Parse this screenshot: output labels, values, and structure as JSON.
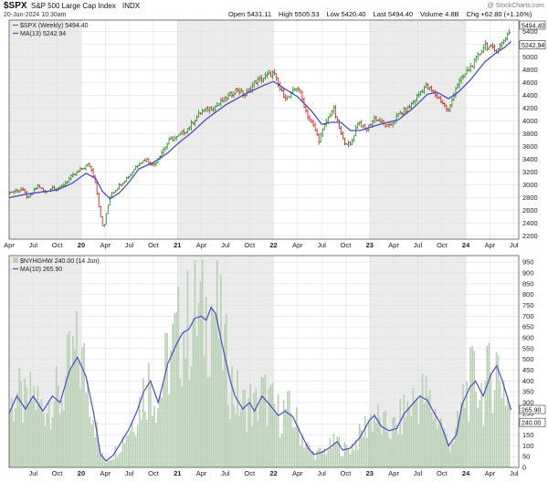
{
  "header": {
    "symbol": "$SPX",
    "name": "S&P 500 Large Cap Index",
    "exchange": "INDX",
    "date": "20-Jun-2024 10:30am",
    "watermark": "@ StockCharts.com",
    "quote": [
      {
        "label": "Open",
        "value": "5431.11"
      },
      {
        "label": "High",
        "value": "5505.53"
      },
      {
        "label": "Low",
        "value": "5420.40"
      },
      {
        "label": "Last",
        "value": "5494.40"
      },
      {
        "label": "Volume",
        "value": "4.8B"
      },
      {
        "label": "Chg",
        "value": "+62.80 (+1.16%)"
      }
    ]
  },
  "colors": {
    "up": "#2f8f2f",
    "down": "#cc2b2b",
    "ma": "#4c4cc0",
    "bars": "#b8d1b4",
    "shade": "#ebebeb",
    "grid": "#e0e0e0"
  },
  "chart_data": [
    {
      "type": "bar",
      "style": "ohlc",
      "legend": [
        "$SPX (Weekly) 5494.40",
        "MA(13) 5242.94"
      ],
      "price_tags": [
        "5494.40",
        "5242.94"
      ],
      "yticks": [
        "2200",
        "2400",
        "2600",
        "2800",
        "3000",
        "3200",
        "3400",
        "3600",
        "3800",
        "4000",
        "4200",
        "4400",
        "4600",
        "4800",
        "5000",
        "5200",
        "5400"
      ],
      "ylim": [
        2150,
        5580
      ],
      "xlim": [
        2019.25,
        2024.55
      ],
      "x_tick_labels": [
        {
          "t": 2019.25,
          "label": "Apr"
        },
        {
          "t": 2019.5,
          "label": "Jul"
        },
        {
          "t": 2019.75,
          "label": "Oct"
        },
        {
          "t": 2020.0,
          "label": "20"
        },
        {
          "t": 2020.25,
          "label": "Apr"
        },
        {
          "t": 2020.5,
          "label": "Jul"
        },
        {
          "t": 2020.75,
          "label": "Oct"
        },
        {
          "t": 2021.0,
          "label": "21"
        },
        {
          "t": 2021.25,
          "label": "Apr"
        },
        {
          "t": 2021.5,
          "label": "Jul"
        },
        {
          "t": 2021.75,
          "label": "Oct"
        },
        {
          "t": 2022.0,
          "label": "22"
        },
        {
          "t": 2022.25,
          "label": "Apr"
        },
        {
          "t": 2022.5,
          "label": "Jul"
        },
        {
          "t": 2022.75,
          "label": "Oct"
        },
        {
          "t": 2023.0,
          "label": "23"
        },
        {
          "t": 2023.25,
          "label": "Apr"
        },
        {
          "t": 2023.5,
          "label": "Jul"
        },
        {
          "t": 2023.75,
          "label": "Oct"
        },
        {
          "t": 2024.0,
          "label": "24"
        },
        {
          "t": 2024.25,
          "label": "Apr"
        },
        {
          "t": 2024.5,
          "label": "Jul"
        }
      ],
      "price_path": [
        [
          2019.25,
          2880
        ],
        [
          2019.38,
          2930
        ],
        [
          2019.45,
          2790
        ],
        [
          2019.55,
          2990
        ],
        [
          2019.62,
          2880
        ],
        [
          2019.7,
          2960
        ],
        [
          2019.78,
          2950
        ],
        [
          2019.88,
          3100
        ],
        [
          2020.0,
          3240
        ],
        [
          2020.08,
          3330
        ],
        [
          2020.14,
          3100
        ],
        [
          2020.2,
          2500
        ],
        [
          2020.23,
          2300
        ],
        [
          2020.3,
          2850
        ],
        [
          2020.4,
          3000
        ],
        [
          2020.5,
          3150
        ],
        [
          2020.6,
          3350
        ],
        [
          2020.68,
          3400
        ],
        [
          2020.75,
          3300
        ],
        [
          2020.83,
          3500
        ],
        [
          2020.92,
          3700
        ],
        [
          2021.0,
          3750
        ],
        [
          2021.12,
          3900
        ],
        [
          2021.25,
          4150
        ],
        [
          2021.4,
          4230
        ],
        [
          2021.5,
          4350
        ],
        [
          2021.62,
          4500
        ],
        [
          2021.7,
          4400
        ],
        [
          2021.8,
          4600
        ],
        [
          2021.92,
          4700
        ],
        [
          2022.0,
          4750
        ],
        [
          2022.08,
          4450
        ],
        [
          2022.15,
          4350
        ],
        [
          2022.25,
          4550
        ],
        [
          2022.35,
          4100
        ],
        [
          2022.42,
          3900
        ],
        [
          2022.47,
          3700
        ],
        [
          2022.55,
          4000
        ],
        [
          2022.62,
          4200
        ],
        [
          2022.72,
          3700
        ],
        [
          2022.8,
          3620
        ],
        [
          2022.88,
          4000
        ],
        [
          2022.96,
          3850
        ],
        [
          2023.05,
          4050
        ],
        [
          2023.15,
          3950
        ],
        [
          2023.2,
          3900
        ],
        [
          2023.3,
          4100
        ],
        [
          2023.4,
          4200
        ],
        [
          2023.5,
          4400
        ],
        [
          2023.58,
          4550
        ],
        [
          2023.66,
          4450
        ],
        [
          2023.75,
          4300
        ],
        [
          2023.82,
          4150
        ],
        [
          2023.9,
          4550
        ],
        [
          2024.0,
          4750
        ],
        [
          2024.1,
          4950
        ],
        [
          2024.2,
          5200
        ],
        [
          2024.3,
          5100
        ],
        [
          2024.37,
          5200
        ],
        [
          2024.45,
          5400
        ],
        [
          2024.47,
          5494
        ]
      ],
      "ma_path": [
        [
          2019.25,
          2800
        ],
        [
          2019.45,
          2860
        ],
        [
          2019.6,
          2890
        ],
        [
          2019.75,
          2920
        ],
        [
          2019.9,
          3020
        ],
        [
          2020.05,
          3180
        ],
        [
          2020.15,
          3100
        ],
        [
          2020.22,
          2900
        ],
        [
          2020.3,
          2780
        ],
        [
          2020.4,
          2880
        ],
        [
          2020.5,
          3050
        ],
        [
          2020.6,
          3250
        ],
        [
          2020.75,
          3350
        ],
        [
          2020.9,
          3500
        ],
        [
          2021.0,
          3640
        ],
        [
          2021.15,
          3820
        ],
        [
          2021.3,
          4030
        ],
        [
          2021.5,
          4250
        ],
        [
          2021.7,
          4420
        ],
        [
          2021.9,
          4560
        ],
        [
          2022.0,
          4620
        ],
        [
          2022.12,
          4500
        ],
        [
          2022.25,
          4380
        ],
        [
          2022.4,
          4150
        ],
        [
          2022.5,
          3950
        ],
        [
          2022.6,
          3980
        ],
        [
          2022.7,
          3980
        ],
        [
          2022.8,
          3850
        ],
        [
          2022.9,
          3850
        ],
        [
          2023.0,
          3900
        ],
        [
          2023.15,
          3970
        ],
        [
          2023.3,
          4020
        ],
        [
          2023.45,
          4200
        ],
        [
          2023.6,
          4420
        ],
        [
          2023.7,
          4450
        ],
        [
          2023.82,
          4350
        ],
        [
          2023.92,
          4450
        ],
        [
          2024.05,
          4650
        ],
        [
          2024.2,
          4930
        ],
        [
          2024.3,
          5050
        ],
        [
          2024.4,
          5150
        ],
        [
          2024.47,
          5243
        ]
      ]
    },
    {
      "type": "bar",
      "legend": [
        "$NYHGHW 240.00 (14 Jun)",
        "MA(10) 265.90"
      ],
      "price_tags": [
        "265.90",
        "240.00"
      ],
      "yticks": [
        "0",
        "50",
        "100",
        "150",
        "200",
        "250",
        "300",
        "350",
        "400",
        "450",
        "500",
        "550",
        "600",
        "650",
        "700",
        "750",
        "800",
        "850",
        "900",
        "950"
      ],
      "ylim": [
        0,
        980
      ],
      "xlim": [
        2019.25,
        2024.55
      ],
      "x_tick_labels": [
        {
          "t": 2019.5,
          "label": "Jul"
        },
        {
          "t": 2019.75,
          "label": "Oct"
        },
        {
          "t": 2020.0,
          "label": "20"
        },
        {
          "t": 2020.25,
          "label": "Apr"
        },
        {
          "t": 2020.5,
          "label": "Jul"
        },
        {
          "t": 2020.75,
          "label": "Oct"
        },
        {
          "t": 2021.0,
          "label": "21"
        },
        {
          "t": 2021.25,
          "label": "Apr"
        },
        {
          "t": 2021.5,
          "label": "Jul"
        },
        {
          "t": 2021.75,
          "label": "Oct"
        },
        {
          "t": 2022.0,
          "label": "22"
        },
        {
          "t": 2022.25,
          "label": "Apr"
        },
        {
          "t": 2022.5,
          "label": "Jul"
        },
        {
          "t": 2022.75,
          "label": "Oct"
        },
        {
          "t": 2023.0,
          "label": "23"
        },
        {
          "t": 2023.25,
          "label": "Apr"
        },
        {
          "t": 2023.5,
          "label": "Jul"
        },
        {
          "t": 2023.75,
          "label": "Oct"
        },
        {
          "t": 2024.0,
          "label": "24"
        },
        {
          "t": 2024.25,
          "label": "Apr"
        },
        {
          "t": 2024.5,
          "label": "Jul"
        }
      ],
      "ma_path": [
        [
          2019.25,
          250
        ],
        [
          2019.33,
          330
        ],
        [
          2019.42,
          270
        ],
        [
          2019.5,
          330
        ],
        [
          2019.6,
          260
        ],
        [
          2019.7,
          330
        ],
        [
          2019.78,
          300
        ],
        [
          2019.88,
          450
        ],
        [
          2019.96,
          510
        ],
        [
          2020.05,
          420
        ],
        [
          2020.13,
          250
        ],
        [
          2020.2,
          60
        ],
        [
          2020.26,
          30
        ],
        [
          2020.33,
          55
        ],
        [
          2020.42,
          120
        ],
        [
          2020.5,
          180
        ],
        [
          2020.58,
          260
        ],
        [
          2020.65,
          350
        ],
        [
          2020.72,
          400
        ],
        [
          2020.8,
          300
        ],
        [
          2020.9,
          480
        ],
        [
          2020.98,
          560
        ],
        [
          2021.05,
          620
        ],
        [
          2021.12,
          640
        ],
        [
          2021.18,
          690
        ],
        [
          2021.25,
          700
        ],
        [
          2021.3,
          680
        ],
        [
          2021.35,
          740
        ],
        [
          2021.4,
          710
        ],
        [
          2021.45,
          600
        ],
        [
          2021.5,
          500
        ],
        [
          2021.55,
          400
        ],
        [
          2021.6,
          330
        ],
        [
          2021.68,
          270
        ],
        [
          2021.75,
          300
        ],
        [
          2021.8,
          260
        ],
        [
          2021.88,
          330
        ],
        [
          2021.96,
          290
        ],
        [
          2022.05,
          240
        ],
        [
          2022.12,
          260
        ],
        [
          2022.2,
          235
        ],
        [
          2022.28,
          160
        ],
        [
          2022.36,
          90
        ],
        [
          2022.42,
          60
        ],
        [
          2022.5,
          70
        ],
        [
          2022.58,
          90
        ],
        [
          2022.66,
          120
        ],
        [
          2022.72,
          80
        ],
        [
          2022.8,
          90
        ],
        [
          2022.9,
          140
        ],
        [
          2023.0,
          220
        ],
        [
          2023.05,
          240
        ],
        [
          2023.12,
          190
        ],
        [
          2023.2,
          170
        ],
        [
          2023.28,
          180
        ],
        [
          2023.36,
          250
        ],
        [
          2023.44,
          290
        ],
        [
          2023.52,
          330
        ],
        [
          2023.6,
          310
        ],
        [
          2023.66,
          260
        ],
        [
          2023.74,
          200
        ],
        [
          2023.82,
          100
        ],
        [
          2023.9,
          150
        ],
        [
          2023.96,
          290
        ],
        [
          2024.04,
          370
        ],
        [
          2024.1,
          400
        ],
        [
          2024.18,
          330
        ],
        [
          2024.26,
          430
        ],
        [
          2024.32,
          470
        ],
        [
          2024.38,
          400
        ],
        [
          2024.44,
          310
        ],
        [
          2024.47,
          266
        ]
      ]
    }
  ]
}
